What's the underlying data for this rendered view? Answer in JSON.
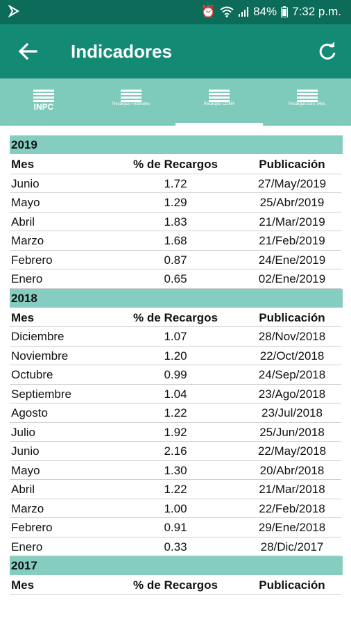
{
  "statusbar": {
    "battery": "84%",
    "time": "7:32 p.m."
  },
  "appbar": {
    "title": "Indicadores"
  },
  "tabs": [
    {
      "label": "INPC",
      "active": false
    },
    {
      "label": "Recargos Federales",
      "active": false
    },
    {
      "label": "Recargos CDMX",
      "active": true
    },
    {
      "label": "Recargos Edo. Mex.",
      "active": false
    }
  ],
  "table_header": {
    "mes": "Mes",
    "recargos": "% de Recargos",
    "publicacion": "Publicación"
  },
  "sections": [
    {
      "year": "2019",
      "rows": [
        {
          "mes": "Junio",
          "recargos": "1.72",
          "publicacion": "27/May/2019"
        },
        {
          "mes": "Mayo",
          "recargos": "1.29",
          "publicacion": "25/Abr/2019"
        },
        {
          "mes": "Abril",
          "recargos": "1.83",
          "publicacion": "21/Mar/2019"
        },
        {
          "mes": "Marzo",
          "recargos": "1.68",
          "publicacion": "21/Feb/2019"
        },
        {
          "mes": "Febrero",
          "recargos": "0.87",
          "publicacion": "24/Ene/2019"
        },
        {
          "mes": "Enero",
          "recargos": "0.65",
          "publicacion": "02/Ene/2019"
        }
      ]
    },
    {
      "year": "2018",
      "rows": [
        {
          "mes": "Diciembre",
          "recargos": "1.07",
          "publicacion": "28/Nov/2018"
        },
        {
          "mes": "Noviembre",
          "recargos": "1.20",
          "publicacion": "22/Oct/2018"
        },
        {
          "mes": "Octubre",
          "recargos": "0.99",
          "publicacion": "24/Sep/2018"
        },
        {
          "mes": "Septiembre",
          "recargos": "1.04",
          "publicacion": "23/Ago/2018"
        },
        {
          "mes": "Agosto",
          "recargos": "1.22",
          "publicacion": "23/Jul/2018"
        },
        {
          "mes": "Julio",
          "recargos": "1.92",
          "publicacion": "25/Jun/2018"
        },
        {
          "mes": "Junio",
          "recargos": "2.16",
          "publicacion": "22/May/2018"
        },
        {
          "mes": "Mayo",
          "recargos": "1.30",
          "publicacion": "20/Abr/2018"
        },
        {
          "mes": "Abril",
          "recargos": "1.22",
          "publicacion": "21/Mar/2018"
        },
        {
          "mes": "Marzo",
          "recargos": "1.00",
          "publicacion": "22/Feb/2018"
        },
        {
          "mes": "Febrero",
          "recargos": "0.91",
          "publicacion": "29/Ene/2018"
        },
        {
          "mes": "Enero",
          "recargos": "0.33",
          "publicacion": "28/Dic/2017"
        }
      ]
    },
    {
      "year": "2017",
      "rows": []
    }
  ]
}
